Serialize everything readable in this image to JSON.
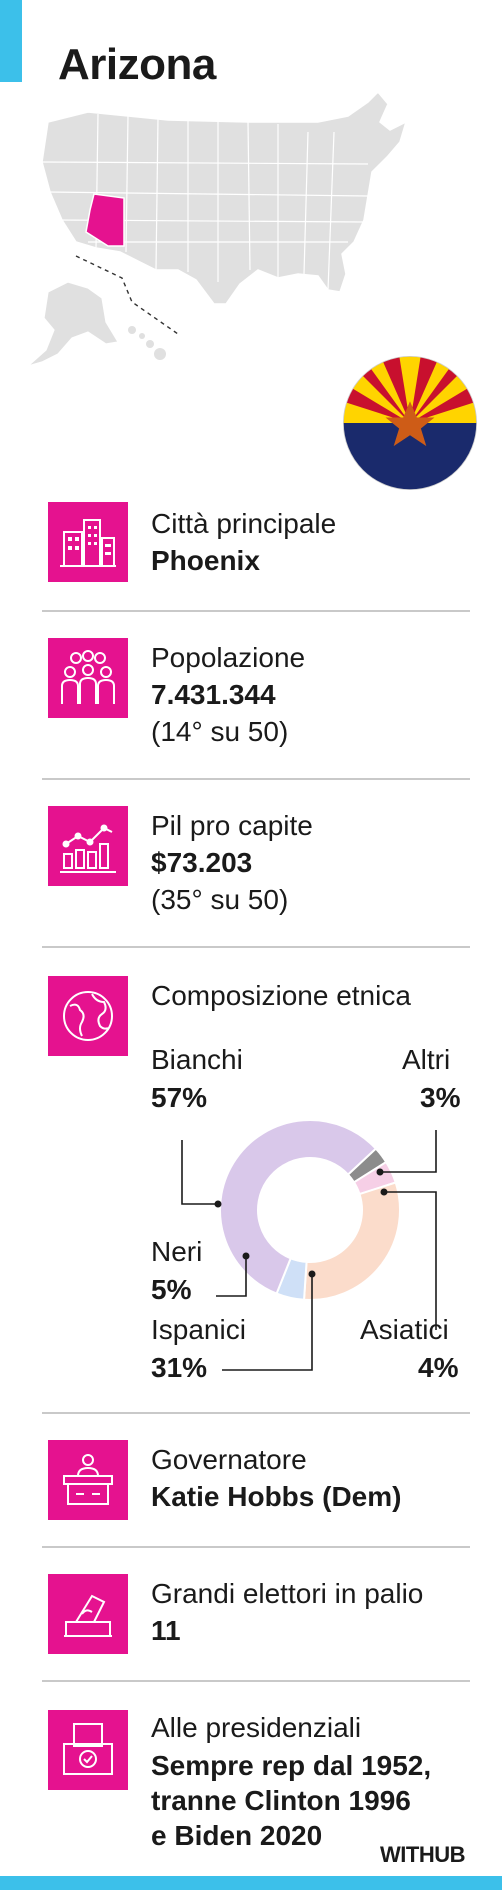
{
  "title": "Arizona",
  "rows": {
    "city": {
      "label": "Città principale",
      "value": "Phoenix",
      "icon": "city-buildings-icon"
    },
    "population": {
      "label": "Popolazione",
      "value": "7.431.344",
      "rank": "(14° su 50)",
      "icon": "people-icon"
    },
    "gdp": {
      "label": "Pil pro capite",
      "value": "$73.203",
      "rank": "(35° su 50)",
      "icon": "bar-chart-icon"
    },
    "ethnic": {
      "label": "Composizione etnica",
      "icon": "globe-icon"
    },
    "governor": {
      "label": "Governatore",
      "value": "Katie Hobbs (Dem)",
      "icon": "podium-icon"
    },
    "electors": {
      "label": "Grandi elettori in palio",
      "value": "11",
      "icon": "ballot-hand-icon"
    },
    "presidential": {
      "label": "Alle presidenziali",
      "lines": [
        "Sempre rep dal 1952,",
        "tranne Clinton 1996",
        "e Biden 2020"
      ],
      "icon": "ballot-box-icon"
    }
  },
  "chart_data": {
    "type": "pie",
    "categories": [
      "Bianchi",
      "Ispanici",
      "Neri",
      "Asiatici",
      "Altri"
    ],
    "values": [
      57,
      31,
      5,
      4,
      3
    ],
    "value_labels": [
      "57%",
      "31%",
      "5%",
      "4%",
      "3%"
    ],
    "colors": [
      "#d9c8ea",
      "#fbdccb",
      "#cfe0f7",
      "#f6cfe6",
      "#8c8c8c"
    ]
  },
  "colors": {
    "accent": "#e5128f",
    "blue_bar": "#3cc0ea",
    "highlight_state": "#e5128f"
  },
  "brand": "WITHUB"
}
